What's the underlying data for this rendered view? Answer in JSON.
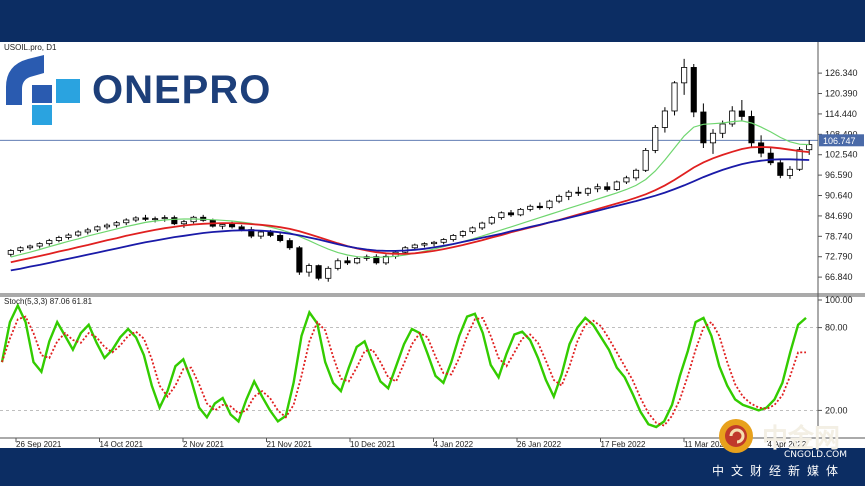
{
  "symbol_label": "USOIL.pro, D1",
  "stoch_label": "Stoch(5,3,3) 87.06 61.81",
  "logo_text": "ONEPRO",
  "watermark": {
    "cn": "中金网",
    "en": "CNGOLD.COM",
    "sub": "中文财经新媒体"
  },
  "colors": {
    "frame": "#0c2d63",
    "candle": "#000000",
    "ma_fast": "#6fd66f",
    "ma_mid": "#e02020",
    "ma_slow": "#1a1aa8",
    "stoch_k": "#33cc00",
    "stoch_d": "#e02020",
    "current_price_line": "#4a6aa8"
  },
  "chart_data": [
    {
      "type": "line",
      "title": "USOIL.pro, D1",
      "subtype": "candlestick with moving averages",
      "current_price": 106.747,
      "current_price_label": "106.747",
      "y_ticks": [
        "126.340",
        "120.390",
        "114.440",
        "108.490",
        "102.540",
        "96.590",
        "90.640",
        "84.690",
        "78.740",
        "72.790",
        "66.840"
      ],
      "ylim": [
        62.5,
        132.5
      ],
      "x_labels": [
        "26 Sep 2021",
        "14 Oct 2021",
        "2 Nov 2021",
        "21 Nov 2021",
        "10 Dec 2021",
        "4 Jan 2022",
        "26 Jan 2022",
        "17 Feb 2022",
        "11 Mar 2022",
        "4 Apr 2022"
      ],
      "candles": [
        [
          73.5,
          75.0,
          72.8,
          74.6
        ],
        [
          74.6,
          75.8,
          74.0,
          75.4
        ],
        [
          75.4,
          76.3,
          74.8,
          75.9
        ],
        [
          75.9,
          77.0,
          75.2,
          76.6
        ],
        [
          76.6,
          78.0,
          76.0,
          77.5
        ],
        [
          77.5,
          78.9,
          77.0,
          78.4
        ],
        [
          78.4,
          79.6,
          77.8,
          79.1
        ],
        [
          79.1,
          80.5,
          78.6,
          80.0
        ],
        [
          80.0,
          81.2,
          79.3,
          80.6
        ],
        [
          80.6,
          81.9,
          80.0,
          81.5
        ],
        [
          81.5,
          82.5,
          80.8,
          82.0
        ],
        [
          82.0,
          83.2,
          81.3,
          82.7
        ],
        [
          82.7,
          84.0,
          82.0,
          83.5
        ],
        [
          83.5,
          84.6,
          82.9,
          84.1
        ],
        [
          84.1,
          85.0,
          83.2,
          83.7
        ],
        [
          83.7,
          84.5,
          82.8,
          83.9
        ],
        [
          83.9,
          84.9,
          83.0,
          84.2
        ],
        [
          84.2,
          84.8,
          82.0,
          82.4
        ],
        [
          82.4,
          83.5,
          81.2,
          83.0
        ],
        [
          83.0,
          84.7,
          82.5,
          84.3
        ],
        [
          84.3,
          85.0,
          83.0,
          83.4
        ],
        [
          83.4,
          83.9,
          81.3,
          81.7
        ],
        [
          81.7,
          82.7,
          80.8,
          82.2
        ],
        [
          82.2,
          83.0,
          81.0,
          81.5
        ],
        [
          81.5,
          82.1,
          80.2,
          80.7
        ],
        [
          80.7,
          81.5,
          78.2,
          78.8
        ],
        [
          78.8,
          80.5,
          78.0,
          80.0
        ],
        [
          80.0,
          80.6,
          78.5,
          79.0
        ],
        [
          79.0,
          79.8,
          77.0,
          77.5
        ],
        [
          77.5,
          78.2,
          74.8,
          75.4
        ],
        [
          75.4,
          75.9,
          67.5,
          68.3
        ],
        [
          68.3,
          70.8,
          67.0,
          70.2
        ],
        [
          70.2,
          70.5,
          65.9,
          66.5
        ],
        [
          66.5,
          70.0,
          65.5,
          69.4
        ],
        [
          69.4,
          72.3,
          68.8,
          71.6
        ],
        [
          71.6,
          72.8,
          70.4,
          71.0
        ],
        [
          71.0,
          72.9,
          70.6,
          72.3
        ],
        [
          72.3,
          73.4,
          71.6,
          72.8
        ],
        [
          72.8,
          73.5,
          70.5,
          71.0
        ],
        [
          71.0,
          73.5,
          70.4,
          72.9
        ],
        [
          72.9,
          74.6,
          72.2,
          74.1
        ],
        [
          74.1,
          75.9,
          73.7,
          75.4
        ],
        [
          75.4,
          76.6,
          74.8,
          76.2
        ],
        [
          76.2,
          77.0,
          75.5,
          76.6
        ],
        [
          76.6,
          77.4,
          75.8,
          77.0
        ],
        [
          77.0,
          78.2,
          76.4,
          77.8
        ],
        [
          77.8,
          79.4,
          77.2,
          79.0
        ],
        [
          79.0,
          80.5,
          78.4,
          80.1
        ],
        [
          80.1,
          81.6,
          79.5,
          81.2
        ],
        [
          81.2,
          83.0,
          80.6,
          82.6
        ],
        [
          82.6,
          84.6,
          82.1,
          84.2
        ],
        [
          84.2,
          86.0,
          83.6,
          85.6
        ],
        [
          85.6,
          86.4,
          84.4,
          85.0
        ],
        [
          85.0,
          87.0,
          84.6,
          86.6
        ],
        [
          86.6,
          88.0,
          86.0,
          87.5
        ],
        [
          87.5,
          88.6,
          86.5,
          87.1
        ],
        [
          87.1,
          89.4,
          86.6,
          89.0
        ],
        [
          89.0,
          90.9,
          88.4,
          90.4
        ],
        [
          90.4,
          92.2,
          89.3,
          91.6
        ],
        [
          91.6,
          93.2,
          90.5,
          91.3
        ],
        [
          91.3,
          93.0,
          90.5,
          92.6
        ],
        [
          92.6,
          94.1,
          91.6,
          93.2
        ],
        [
          93.2,
          94.5,
          91.8,
          92.4
        ],
        [
          92.4,
          95.0,
          92.0,
          94.6
        ],
        [
          94.6,
          96.4,
          94.0,
          95.8
        ],
        [
          95.8,
          98.5,
          95.0,
          98.0
        ],
        [
          98.0,
          104.5,
          97.5,
          103.8
        ],
        [
          103.8,
          111.2,
          103.0,
          110.5
        ],
        [
          110.5,
          116.4,
          109.0,
          115.3
        ],
        [
          115.3,
          124.0,
          114.0,
          123.5
        ],
        [
          123.5,
          130.5,
          120.0,
          128.0
        ],
        [
          128.0,
          129.0,
          113.5,
          115.0
        ],
        [
          115.0,
          117.5,
          104.5,
          106.0
        ],
        [
          106.0,
          110.0,
          102.8,
          108.8
        ],
        [
          108.8,
          112.5,
          107.4,
          111.5
        ],
        [
          111.5,
          116.7,
          110.7,
          115.3
        ],
        [
          115.3,
          118.5,
          112.5,
          113.7
        ],
        [
          113.7,
          115.4,
          104.5,
          106.0
        ],
        [
          106.0,
          108.2,
          101.8,
          103.0
        ],
        [
          103.0,
          104.8,
          99.5,
          100.2
        ],
        [
          100.2,
          101.2,
          95.7,
          96.5
        ],
        [
          96.5,
          99.2,
          95.5,
          98.3
        ],
        [
          98.3,
          104.8,
          97.8,
          104.0
        ],
        [
          104.0,
          106.8,
          102.5,
          105.5
        ]
      ],
      "series": [
        {
          "name": "",
          "color": "#6fd66f",
          "values": [
            72.7,
            73.4,
            74.1,
            74.9,
            75.7,
            76.5,
            77.3,
            78.0,
            78.8,
            79.5,
            80.2,
            80.9,
            81.6,
            82.2,
            82.8,
            83.2,
            83.5,
            83.7,
            83.8,
            83.8,
            83.7,
            83.6,
            83.4,
            83.2,
            82.9,
            82.5,
            82.0,
            81.4,
            80.7,
            79.8,
            78.7,
            77.5,
            76.2,
            75.0,
            74.0,
            73.3,
            72.8,
            72.6,
            72.6,
            72.7,
            72.9,
            73.3,
            73.8,
            74.4,
            75.0,
            75.7,
            76.4,
            77.2,
            78.0,
            78.8,
            79.7,
            80.6,
            81.5,
            82.4,
            83.3,
            84.2,
            85.1,
            86.0,
            86.9,
            87.8,
            88.7,
            89.6,
            90.5,
            91.4,
            92.4,
            93.6,
            95.3,
            97.8,
            101.0,
            104.5,
            108.0,
            110.6,
            111.4,
            111.6,
            111.8,
            112.2,
            112.4,
            111.8,
            110.6,
            109.2,
            107.6,
            106.3,
            105.6,
            105.5
          ]
        },
        {
          "name": "",
          "color": "#e02020",
          "values": [
            71.2,
            71.8,
            72.4,
            73.0,
            73.6,
            74.3,
            74.9,
            75.6,
            76.2,
            76.9,
            77.6,
            78.2,
            78.9,
            79.5,
            80.1,
            80.6,
            81.1,
            81.5,
            81.9,
            82.2,
            82.4,
            82.5,
            82.6,
            82.6,
            82.5,
            82.3,
            82.1,
            81.8,
            81.4,
            80.9,
            80.2,
            79.4,
            78.5,
            77.6,
            76.7,
            75.9,
            75.2,
            74.6,
            74.1,
            73.8,
            73.6,
            73.6,
            73.8,
            74.1,
            74.5,
            75.0,
            75.6,
            76.2,
            76.9,
            77.6,
            78.4,
            79.1,
            79.9,
            80.6,
            81.3,
            82.0,
            82.8,
            83.5,
            84.3,
            85.1,
            85.9,
            86.7,
            87.5,
            88.3,
            89.1,
            90.0,
            91.0,
            92.2,
            93.6,
            95.2,
            97.0,
            98.8,
            100.3,
            101.5,
            102.5,
            103.4,
            104.2,
            104.7,
            104.8,
            104.7,
            104.4,
            104.0,
            103.6,
            103.3
          ]
        },
        {
          "name": "",
          "color": "#1a1aa8",
          "values": [
            68.8,
            69.3,
            69.9,
            70.4,
            71.0,
            71.6,
            72.2,
            72.8,
            73.4,
            74.0,
            74.6,
            75.2,
            75.8,
            76.4,
            77.0,
            77.5,
            78.0,
            78.5,
            78.9,
            79.3,
            79.7,
            80.0,
            80.2,
            80.4,
            80.5,
            80.5,
            80.4,
            80.2,
            79.9,
            79.5,
            79.0,
            78.4,
            77.8,
            77.1,
            76.4,
            75.8,
            75.3,
            74.9,
            74.6,
            74.5,
            74.5,
            74.6,
            74.8,
            75.1,
            75.5,
            76.0,
            76.5,
            77.1,
            77.7,
            78.3,
            78.9,
            79.5,
            80.2,
            80.8,
            81.5,
            82.1,
            82.8,
            83.4,
            84.1,
            84.8,
            85.5,
            86.2,
            86.9,
            87.6,
            88.3,
            89.0,
            89.8,
            90.6,
            91.5,
            92.5,
            93.6,
            94.8,
            96.0,
            97.1,
            98.1,
            99.0,
            99.8,
            100.4,
            100.8,
            101.1,
            101.2,
            101.2,
            101.1,
            101.0
          ]
        }
      ]
    },
    {
      "type": "line",
      "title": "Stoch(5,3,3) 87.06 61.81",
      "ylim": [
        0,
        100
      ],
      "y_ticks": [
        "100.00",
        "80.00",
        "20.00"
      ],
      "series": [
        {
          "name": "",
          "color": "#33cc00",
          "values": [
            55,
            84,
            96,
            84,
            55,
            48,
            70,
            84,
            74,
            64,
            76,
            82,
            69,
            58,
            64,
            73,
            79,
            73,
            60,
            38,
            22,
            34,
            52,
            57,
            42,
            22,
            15,
            25,
            29,
            17,
            12,
            28,
            41,
            30,
            20,
            12,
            16,
            40,
            74,
            91,
            83,
            55,
            40,
            34,
            51,
            66,
            70,
            55,
            41,
            36,
            52,
            68,
            79,
            76,
            61,
            45,
            40,
            55,
            74,
            88,
            90,
            76,
            53,
            44,
            61,
            75,
            77,
            71,
            58,
            42,
            30,
            46,
            68,
            80,
            87,
            82,
            73,
            64,
            51,
            44,
            32,
            19,
            10,
            8,
            12,
            24,
            45,
            63,
            84,
            87,
            74,
            52,
            38,
            28,
            24,
            22,
            20,
            22,
            28,
            40,
            62,
            82,
            87
          ]
        },
        {
          "name": "",
          "color": "#e02020",
          "values": [
            55,
            72,
            86,
            88,
            76,
            60,
            58,
            70,
            76,
            71,
            69,
            76,
            73,
            66,
            62,
            67,
            74,
            77,
            72,
            57,
            38,
            30,
            38,
            50,
            51,
            39,
            25,
            20,
            24,
            23,
            18,
            20,
            30,
            34,
            29,
            20,
            15,
            24,
            45,
            70,
            84,
            78,
            59,
            43,
            41,
            51,
            63,
            64,
            55,
            44,
            41,
            54,
            68,
            76,
            73,
            59,
            47,
            46,
            58,
            74,
            86,
            87,
            74,
            58,
            52,
            62,
            72,
            75,
            69,
            56,
            42,
            38,
            52,
            70,
            82,
            85,
            81,
            72,
            62,
            52,
            42,
            29,
            18,
            11,
            9,
            16,
            28,
            45,
            64,
            80,
            84,
            74,
            55,
            39,
            30,
            25,
            22,
            21,
            24,
            31,
            45,
            62,
            62
          ]
        }
      ]
    }
  ]
}
